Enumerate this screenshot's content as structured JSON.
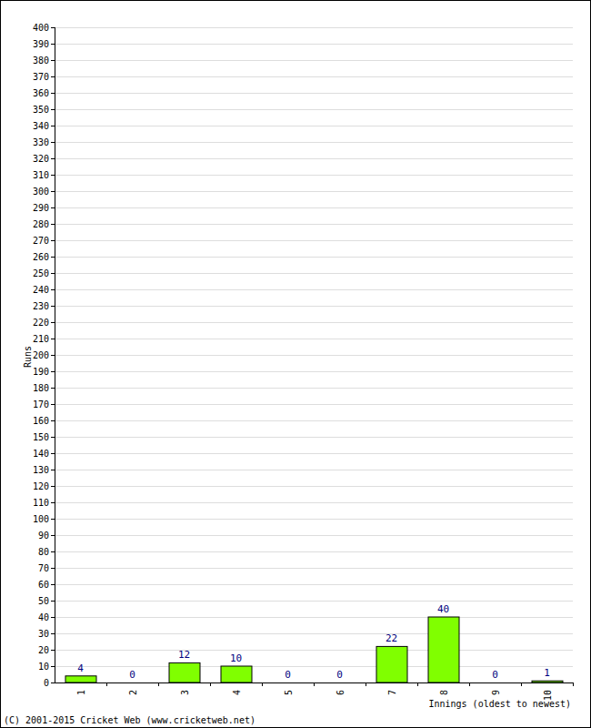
{
  "chart_data": {
    "type": "bar",
    "categories": [
      "1",
      "2",
      "3",
      "4",
      "5",
      "6",
      "7",
      "8",
      "9",
      "10"
    ],
    "values": [
      4,
      0,
      12,
      10,
      0,
      0,
      22,
      40,
      0,
      1
    ],
    "color": "#80ff00",
    "x_label": "Innings (oldest to newest)",
    "y_label": "Runs",
    "annotations": [
      "(C) 2001-2015 Cricket Web (www.cricketweb.net)"
    ],
    "ylim": [
      0,
      400
    ],
    "yticks": [
      0,
      10,
      20,
      30,
      40,
      50,
      60,
      70,
      80,
      90,
      100,
      110,
      120,
      130,
      140,
      150,
      160,
      170,
      180,
      190,
      200,
      210,
      220,
      230,
      240,
      250,
      260,
      270,
      280,
      290,
      300,
      310,
      320,
      330,
      340,
      350,
      360,
      370,
      380,
      390,
      400
    ],
    "grid": true,
    "data_labels": true
  }
}
